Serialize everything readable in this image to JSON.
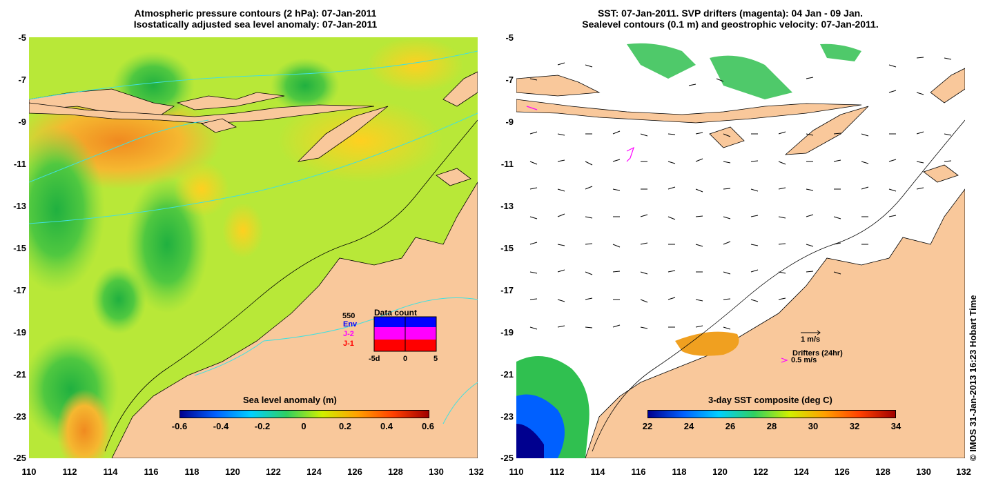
{
  "left_panel": {
    "title_line1": "Atmospheric pressure contours (2 hPa): 07-Jan-2011",
    "title_line2": "Isostatically adjusted sea level anomaly: 07-Jan-2011",
    "colorbar": {
      "title": "Sea level anomaly (m)",
      "ticks": [
        "-0.6",
        "-0.4",
        "-0.2",
        "0",
        "0.2",
        "0.4",
        "0.6"
      ]
    },
    "data_count": {
      "title": "Data count",
      "max_label": "550",
      "series": [
        {
          "name": "Env",
          "color": "#0000ff"
        },
        {
          "name": "J-2",
          "color": "#ff00ff"
        },
        {
          "name": "J-1",
          "color": "#ff0000"
        }
      ],
      "x_ticks": [
        "-5d",
        "0",
        "5"
      ]
    }
  },
  "right_panel": {
    "title_line1": "SST: 07-Jan-2011. SVP drifters (magenta): 04 Jan - 09 Jan.",
    "title_line2": "Sealevel contours (0.1 m) and geostrophic velocity: 07-Jan-2011.",
    "colorbar": {
      "title": "3-day SST composite (deg C)",
      "ticks": [
        "22",
        "24",
        "26",
        "28",
        "30",
        "32",
        "34"
      ]
    },
    "velocity_legend": "1 m/s",
    "drifter_legend_title": "Drifters (24hr)",
    "drifter_legend_value": "0.5 m/s"
  },
  "axes": {
    "y_ticks": [
      "-5",
      "-7",
      "-9",
      "-11",
      "-13",
      "-15",
      "-17",
      "-19",
      "-21",
      "-23",
      "-25"
    ],
    "x_ticks": [
      "110",
      "112",
      "114",
      "116",
      "118",
      "120",
      "122",
      "124",
      "126",
      "128",
      "130",
      "132"
    ]
  },
  "copyright": "© IMOS 31-Jan-2013 16:23 Hobart Time",
  "colors": {
    "land": "#f9c89b",
    "ocean_anomaly_base": "#c8f040",
    "sst_colormap": [
      "#00008f",
      "#0060ff",
      "#00e0ff",
      "#30d060",
      "#d0f000",
      "#ffa000",
      "#ff4000",
      "#a00000"
    ]
  }
}
